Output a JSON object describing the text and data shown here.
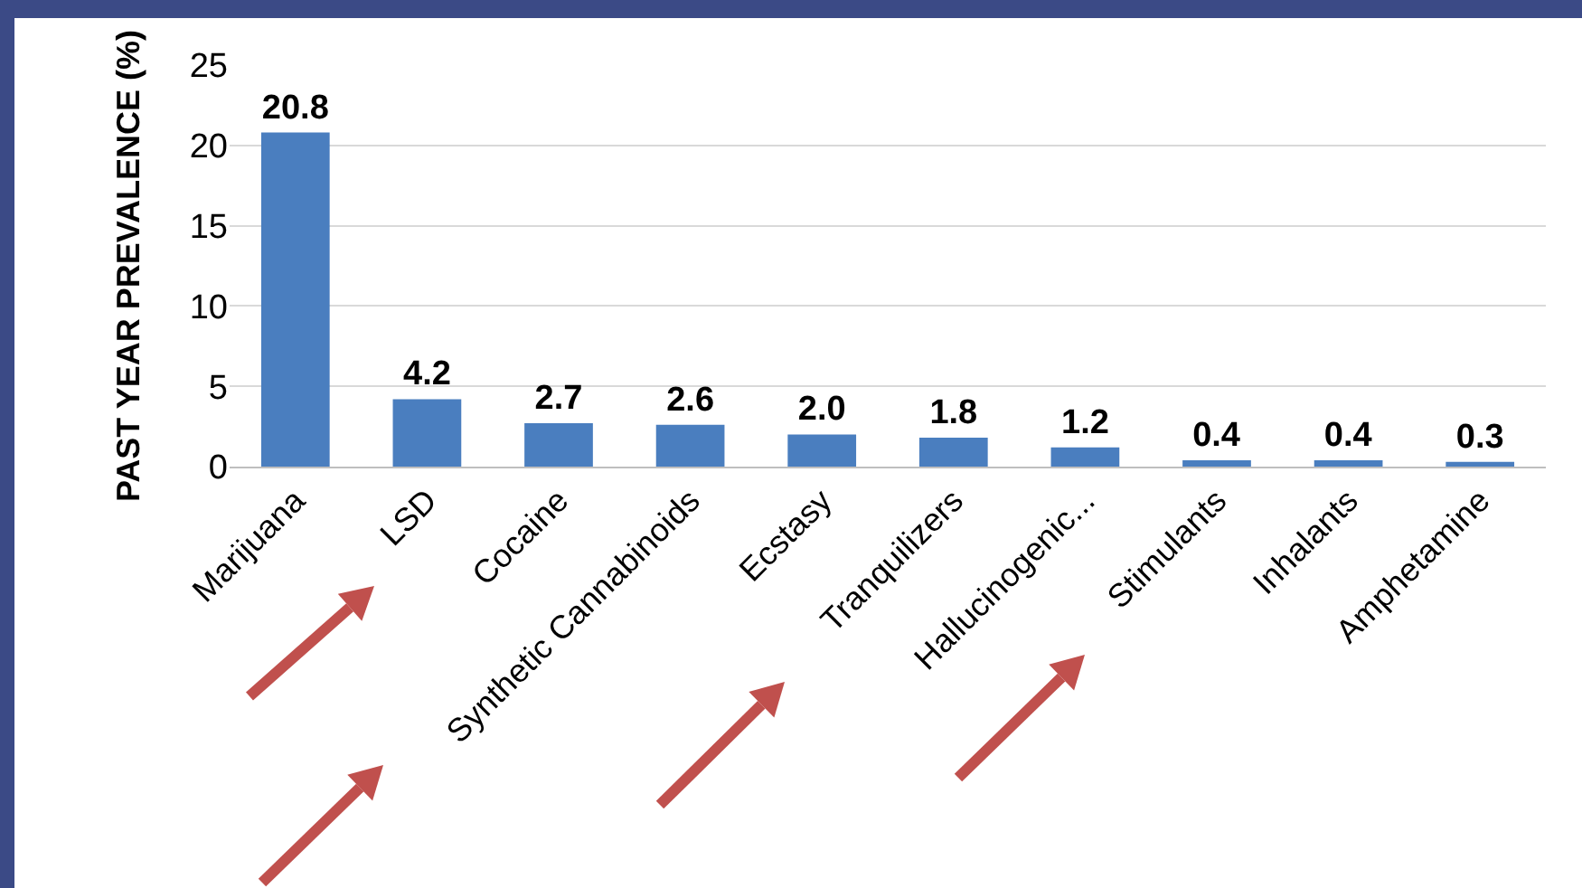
{
  "chart_data": {
    "type": "bar",
    "ylabel": "PAST YEAR PREVALENCE (%)",
    "categories": [
      "Marijuana",
      "LSD",
      "Cocaine",
      "Synthetic Cannabinoids",
      "Ecstasy",
      "Tranquilizers",
      "Hallucinogenic...",
      "Stimulants",
      "Inhalants",
      "Amphetamine"
    ],
    "values": [
      20.8,
      4.2,
      2.7,
      2.6,
      2.0,
      1.8,
      1.2,
      0.4,
      0.4,
      0.3
    ],
    "value_labels": [
      "20.8",
      "4.2",
      "2.7",
      "2.6",
      "2.0",
      "1.8",
      "1.2",
      "0.4",
      "0.4",
      "0.3"
    ],
    "color": "#4a7ebf",
    "ylim": [
      0,
      25
    ],
    "yticks": [
      0,
      5,
      10,
      15,
      20,
      25
    ],
    "grid": "y",
    "legend": false
  }
}
